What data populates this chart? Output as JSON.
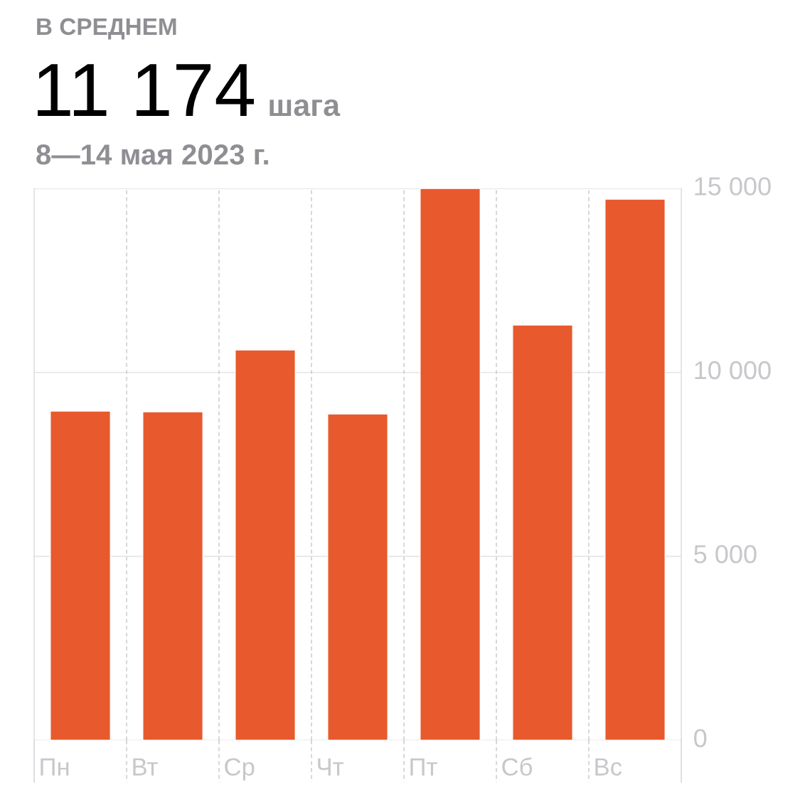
{
  "chart_data": {
    "type": "bar",
    "title": "В СРЕДНЕМ",
    "subtitle": "8—14 мая 2023 г.",
    "annotations": [
      "11 174",
      "шага"
    ],
    "categories": [
      "Пн",
      "Вт",
      "Ср",
      "Чт",
      "Пт",
      "Сб",
      "Вс"
    ],
    "values": [
      8950,
      8930,
      10610,
      8870,
      15000,
      11290,
      14710
    ],
    "color": "#e8592d",
    "ylim": [
      0,
      15000
    ],
    "yticks": [
      {
        "value": 0,
        "label": "0"
      },
      {
        "value": 5000,
        "label": "5 000"
      },
      {
        "value": 10000,
        "label": "10 000"
      },
      {
        "value": 15000,
        "label": "15 000"
      }
    ],
    "grid": true
  }
}
